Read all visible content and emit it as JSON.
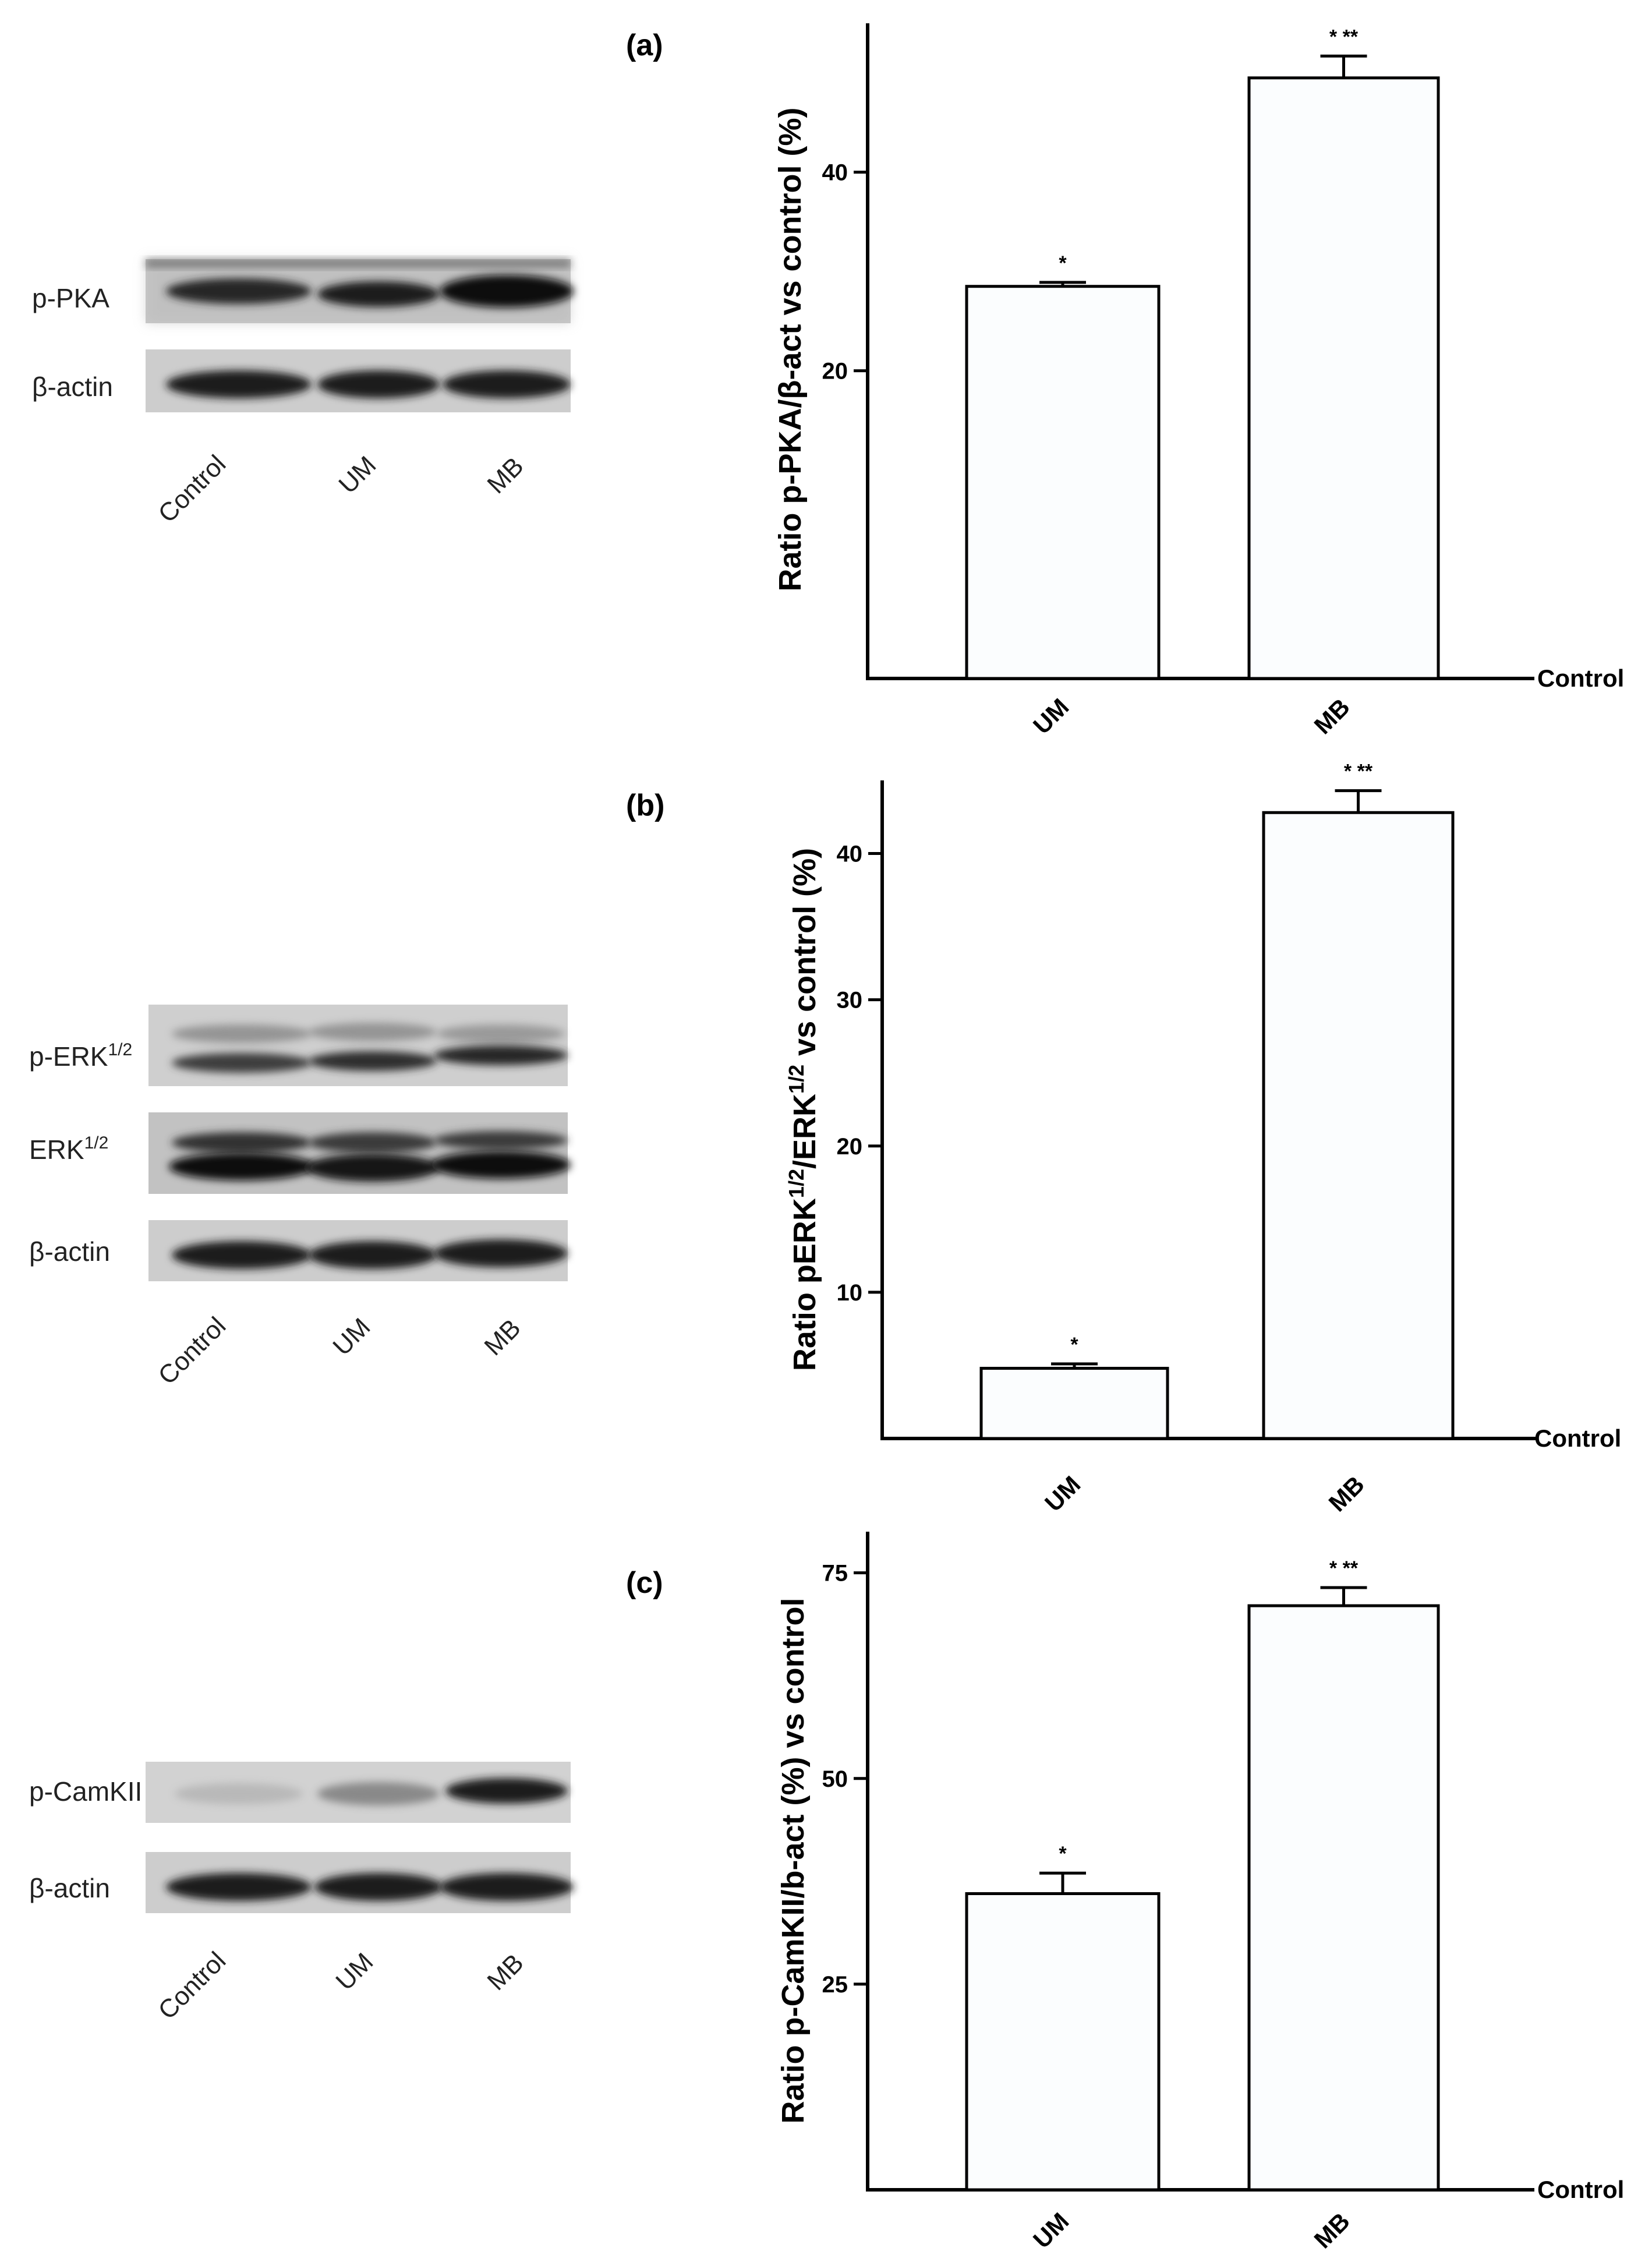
{
  "chart_data": [
    {
      "type": "bar",
      "panel_tag": "(a)",
      "title": "",
      "ylabel_parts": [
        "Ratio p-PKA/β-act vs control (%)"
      ],
      "baseline_label": "Control",
      "categories": [
        "UM",
        "MB"
      ],
      "values": [
        28.5,
        49.5
      ],
      "errors": [
        0.4,
        2.2
      ],
      "significance": [
        "*",
        "* **"
      ],
      "yticks": [
        20,
        40
      ],
      "ylim": [
        -11,
        55
      ],
      "blot": {
        "rows": [
          "p-PKA",
          "β-actin"
        ],
        "lanes": [
          "Control",
          "UM",
          "MB"
        ]
      }
    },
    {
      "type": "bar",
      "panel_tag": "(b)",
      "title": "",
      "ylabel_parts": [
        "Ratio pERK",
        "1/2",
        "/ERK",
        "1/2",
        " vs control (%)"
      ],
      "baseline_label": "Control",
      "categories": [
        "UM",
        "MB"
      ],
      "values": [
        4.8,
        42.8
      ],
      "errors": [
        0.3,
        1.5
      ],
      "significance": [
        "*",
        "* **"
      ],
      "yticks": [
        10,
        20,
        30,
        40
      ],
      "ylim": [
        0,
        45
      ],
      "blot": {
        "rows": [
          {
            "base": "p-ERK",
            "sup": "1/2"
          },
          {
            "base": "ERK",
            "sup": "1/2"
          },
          {
            "base": "β-actin",
            "sup": ""
          }
        ],
        "lanes": [
          "Control",
          "UM",
          "MB"
        ]
      }
    },
    {
      "type": "bar",
      "panel_tag": "(c)",
      "title": "",
      "ylabel_parts": [
        "Ratio p-CamKII/b-act (%) vs control"
      ],
      "baseline_label": "Control",
      "categories": [
        "UM",
        "MB"
      ],
      "values": [
        36,
        71
      ],
      "errors": [
        2.5,
        2.2
      ],
      "significance": [
        "*",
        "* **"
      ],
      "yticks": [
        25,
        50,
        75
      ],
      "ylim": [
        0,
        80
      ],
      "blot": {
        "rows": [
          "p-CamKII",
          "β-actin"
        ],
        "lanes": [
          "Control",
          "UM",
          "MB"
        ]
      }
    }
  ],
  "colors": {
    "bar_fill": "#fbfdfe",
    "bar_stroke": "#000000",
    "axis": "#000000",
    "blot_background": "#c8c8c8",
    "band": "#1a1a1a"
  }
}
